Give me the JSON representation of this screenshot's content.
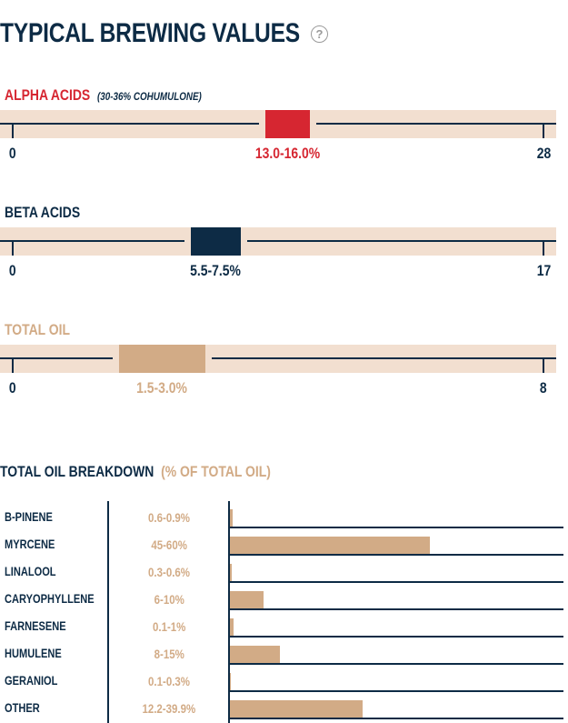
{
  "title": "TYPICAL BREWING VALUES",
  "help_icon": "question-circle-icon",
  "colors": {
    "navy": "#0d2b45",
    "red": "#d62631",
    "tan": "#d2ab86",
    "band": "#f2dfd0"
  },
  "ranges": [
    {
      "label": "ALPHA ACIDS",
      "note": "(30-36% COHUMULONE)",
      "min": 0,
      "max": 28,
      "low": 13.0,
      "high": 16.0,
      "range_label": "13.0-16.0%",
      "min_label": "0",
      "max_label": "28",
      "color": "#d62631"
    },
    {
      "label": "BETA ACIDS",
      "note": "",
      "min": 0,
      "max": 17,
      "low": 5.5,
      "high": 7.5,
      "range_label": "5.5-7.5%",
      "min_label": "0",
      "max_label": "17",
      "color": "#0d2b45"
    },
    {
      "label": "TOTAL OIL",
      "note": "",
      "min": 0,
      "max": 8,
      "low": 1.5,
      "high": 3.0,
      "range_label": "1.5-3.0%",
      "min_label": "0",
      "max_label": "8",
      "color": "#d2ab86"
    }
  ],
  "breakdown": {
    "title": "TOTAL OIL BREAKDOWN",
    "subtitle": "(% OF TOTAL OIL)",
    "rows": [
      {
        "name": "B-PINENE",
        "range": "0.6-0.9%",
        "max": 0.9
      },
      {
        "name": "MYRCENE",
        "range": "45-60%",
        "max": 60
      },
      {
        "name": "LINALOOL",
        "range": "0.3-0.6%",
        "max": 0.6
      },
      {
        "name": "CARYOPHYLLENE",
        "range": "6-10%",
        "max": 10
      },
      {
        "name": "FARNESENE",
        "range": "0.1-1%",
        "max": 1
      },
      {
        "name": "HUMULENE",
        "range": "8-15%",
        "max": 15
      },
      {
        "name": "GERANIOL",
        "range": "0.1-0.3%",
        "max": 0.3
      },
      {
        "name": "OTHER",
        "range": "12.2-39.9%",
        "max": 39.9
      }
    ]
  }
}
